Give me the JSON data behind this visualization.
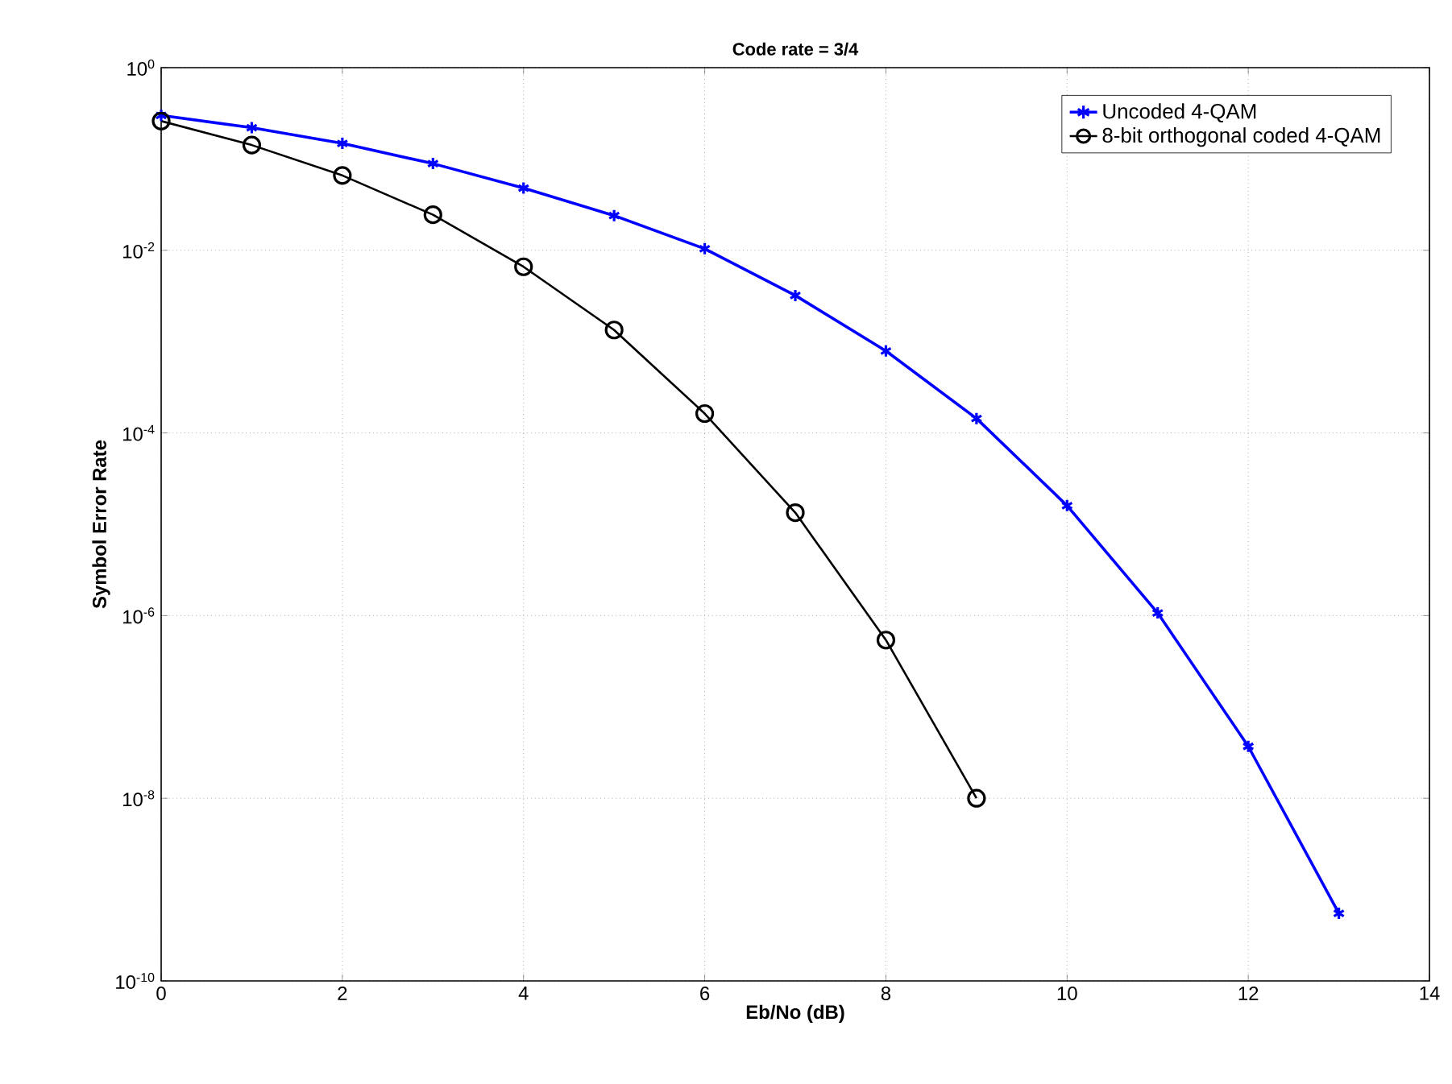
{
  "chart_data": {
    "type": "line",
    "title": "Code rate = 3/4",
    "xlabel": "Eb/No (dB)",
    "ylabel": "Symbol Error Rate",
    "x": [
      0,
      1,
      2,
      3,
      4,
      5,
      6,
      7,
      8,
      9,
      10,
      11,
      12,
      13
    ],
    "series": [
      {
        "name": "Uncoded 4-QAM",
        "color": "#0000ff",
        "marker": "cross",
        "values": [
          0.3,
          0.22,
          0.148,
          0.089,
          0.048,
          0.024,
          0.0104,
          0.0032,
          0.00079,
          0.000144,
          1.6e-05,
          1.07e-06,
          3.7e-08,
          5.5e-10
        ]
      },
      {
        "name": "8-bit orthogonal coded 4-QAM",
        "color": "#000000",
        "marker": "circle",
        "values": [
          0.26,
          0.142,
          0.066,
          0.0245,
          0.0066,
          0.00134,
          0.000163,
          1.34e-05,
          5.4e-07,
          1e-08,
          null,
          null,
          null,
          null
        ]
      }
    ],
    "xlim": [
      0,
      14
    ],
    "xticks": [
      0,
      2,
      4,
      6,
      8,
      10,
      12,
      14
    ],
    "ylim": [
      1e-10,
      1
    ],
    "yticks": [
      {
        "value": 1e-10,
        "label": "10$^{-10}$"
      },
      {
        "value": 1e-08,
        "label": "10$^{-8}$"
      },
      {
        "value": 1e-06,
        "label": "10$^{-6}$"
      },
      {
        "value": 0.0001,
        "label": "10$^{-4}$"
      },
      {
        "value": 0.01,
        "label": "10$^{-2}$"
      },
      {
        "value": 1,
        "label": "10$^{0}$"
      }
    ],
    "log": true,
    "grid": true,
    "legend": "top right",
    "line_style": "solid"
  }
}
